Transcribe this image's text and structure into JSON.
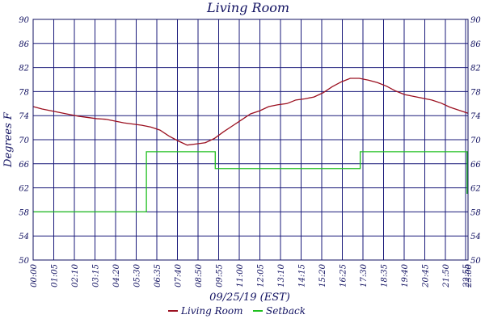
{
  "chart_data": {
    "type": "line",
    "title": "Living Room",
    "xlabel": "09/25/19 (EST)",
    "ylabel": "Degrees F",
    "ylim": [
      50,
      90
    ],
    "yticks": [
      50,
      54,
      58,
      62,
      66,
      70,
      74,
      78,
      82,
      86,
      90
    ],
    "xticks": [
      "00:00",
      "01:05",
      "02:10",
      "03:15",
      "04:20",
      "05:30",
      "06:35",
      "07:40",
      "08:50",
      "09:55",
      "11:00",
      "12:05",
      "13:10",
      "14:15",
      "15:20",
      "16:25",
      "17:30",
      "18:35",
      "19:40",
      "20:45",
      "21:50",
      "22:55",
      "23:00"
    ],
    "xrange_hours": [
      0,
      24
    ],
    "grid": true,
    "legend": "bottom-center",
    "series": [
      {
        "name": "Living Room",
        "color": "#9b1020",
        "points": [
          [
            0.0,
            75.5
          ],
          [
            0.5,
            75.1
          ],
          [
            1.0,
            74.8
          ],
          [
            1.5,
            74.5
          ],
          [
            2.0,
            74.2
          ],
          [
            2.5,
            73.9
          ],
          [
            3.0,
            73.7
          ],
          [
            3.5,
            73.5
          ],
          [
            4.0,
            73.4
          ],
          [
            4.5,
            73.1
          ],
          [
            5.0,
            72.8
          ],
          [
            5.5,
            72.6
          ],
          [
            6.0,
            72.4
          ],
          [
            6.5,
            72.1
          ],
          [
            7.0,
            71.6
          ],
          [
            7.5,
            70.6
          ],
          [
            8.0,
            69.8
          ],
          [
            8.5,
            69.1
          ],
          [
            9.0,
            69.3
          ],
          [
            9.5,
            69.5
          ],
          [
            10.0,
            70.2
          ],
          [
            10.5,
            71.3
          ],
          [
            11.0,
            72.3
          ],
          [
            11.5,
            73.3
          ],
          [
            12.0,
            74.3
          ],
          [
            12.5,
            74.8
          ],
          [
            13.0,
            75.5
          ],
          [
            13.5,
            75.8
          ],
          [
            14.0,
            76.0
          ],
          [
            14.5,
            76.6
          ],
          [
            15.0,
            76.8
          ],
          [
            15.5,
            77.1
          ],
          [
            16.0,
            77.8
          ],
          [
            16.5,
            78.8
          ],
          [
            17.0,
            79.6
          ],
          [
            17.5,
            80.2
          ],
          [
            18.0,
            80.2
          ],
          [
            18.5,
            79.9
          ],
          [
            19.0,
            79.5
          ],
          [
            19.5,
            78.9
          ],
          [
            20.0,
            78.1
          ],
          [
            20.5,
            77.5
          ],
          [
            21.0,
            77.2
          ],
          [
            21.5,
            76.9
          ],
          [
            22.0,
            76.6
          ],
          [
            22.5,
            76.1
          ],
          [
            23.0,
            75.4
          ],
          [
            23.5,
            74.9
          ],
          [
            24.0,
            74.4
          ]
        ]
      },
      {
        "name": "Setback",
        "color": "#1fbf1f",
        "points": [
          [
            0.0,
            58
          ],
          [
            6.1,
            58
          ],
          [
            6.25,
            68
          ],
          [
            10.0,
            68
          ],
          [
            10.05,
            65.2
          ],
          [
            18.0,
            65.2
          ],
          [
            18.05,
            68
          ],
          [
            23.9,
            68
          ],
          [
            23.95,
            61
          ]
        ]
      }
    ]
  }
}
